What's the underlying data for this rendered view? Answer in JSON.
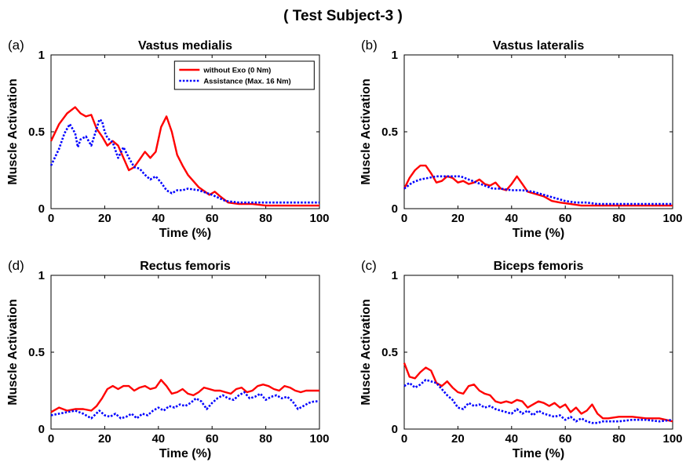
{
  "figure": {
    "title": "( Test Subject-3 )"
  },
  "colors": {
    "without": "#ff0000",
    "assistance": "#0000ff",
    "axis": "#000000"
  },
  "chart_data": [
    {
      "type": "line",
      "panel": "(a)",
      "title": "Vastus medialis",
      "xlabel": "Time (%)",
      "ylabel": "Muscle Activation",
      "xlim": [
        0,
        100
      ],
      "ylim": [
        0,
        1
      ],
      "xticks": [
        0,
        20,
        40,
        60,
        80,
        100
      ],
      "yticks": [
        0,
        0.5,
        1
      ],
      "legend": {
        "placement": "top-right",
        "entries": [
          "without Exo (0 Nm)",
          "Assistance (Max. 16 Nm)"
        ]
      },
      "series": [
        {
          "name": "without Exo (0 Nm)",
          "style": "solid",
          "color": "#ff0000",
          "x": [
            0,
            3,
            6,
            9,
            11,
            13,
            15,
            17,
            19,
            21,
            23,
            25,
            27,
            29,
            31,
            33,
            35,
            37,
            39,
            41,
            43,
            45,
            47,
            49,
            51,
            55,
            59,
            61,
            63,
            66,
            70,
            75,
            80,
            90,
            100
          ],
          "y": [
            0.44,
            0.55,
            0.62,
            0.66,
            0.62,
            0.6,
            0.61,
            0.52,
            0.47,
            0.41,
            0.44,
            0.41,
            0.33,
            0.25,
            0.27,
            0.32,
            0.37,
            0.33,
            0.37,
            0.53,
            0.6,
            0.5,
            0.35,
            0.28,
            0.22,
            0.14,
            0.09,
            0.11,
            0.08,
            0.04,
            0.03,
            0.03,
            0.02,
            0.02,
            0.02
          ]
        },
        {
          "name": "Assistance (Max. 16 Nm)",
          "style": "dotted",
          "color": "#0000ff",
          "x": [
            0,
            3,
            5,
            7,
            9,
            10,
            11,
            13,
            15,
            17,
            18,
            19,
            20,
            21,
            23,
            25,
            27,
            29,
            31,
            33,
            35,
            37,
            39,
            41,
            43,
            45,
            47,
            49,
            51,
            55,
            60,
            65,
            70,
            80,
            90,
            100
          ],
          "y": [
            0.28,
            0.39,
            0.49,
            0.55,
            0.49,
            0.4,
            0.45,
            0.47,
            0.41,
            0.52,
            0.58,
            0.57,
            0.5,
            0.46,
            0.43,
            0.33,
            0.4,
            0.33,
            0.27,
            0.26,
            0.22,
            0.19,
            0.21,
            0.17,
            0.12,
            0.1,
            0.12,
            0.12,
            0.13,
            0.12,
            0.09,
            0.05,
            0.04,
            0.04,
            0.04,
            0.04
          ]
        }
      ]
    },
    {
      "type": "line",
      "panel": "(b)",
      "title": "Vastus lateralis",
      "xlabel": "Time (%)",
      "ylabel": "Muscle Activation",
      "xlim": [
        0,
        100
      ],
      "ylim": [
        0,
        1
      ],
      "xticks": [
        0,
        20,
        40,
        60,
        80,
        100
      ],
      "yticks": [
        0,
        0.5,
        1
      ],
      "series": [
        {
          "name": "without Exo (0 Nm)",
          "style": "solid",
          "color": "#ff0000",
          "x": [
            0,
            2,
            4,
            6,
            8,
            10,
            12,
            14,
            16,
            18,
            20,
            22,
            24,
            26,
            28,
            30,
            32,
            34,
            36,
            38,
            40,
            42,
            44,
            46,
            48,
            50,
            52,
            55,
            58,
            62,
            66,
            70,
            80,
            90,
            100
          ],
          "y": [
            0.13,
            0.2,
            0.25,
            0.28,
            0.28,
            0.23,
            0.17,
            0.18,
            0.21,
            0.2,
            0.17,
            0.18,
            0.16,
            0.17,
            0.19,
            0.16,
            0.15,
            0.17,
            0.13,
            0.12,
            0.16,
            0.21,
            0.16,
            0.11,
            0.1,
            0.09,
            0.08,
            0.05,
            0.04,
            0.03,
            0.02,
            0.02,
            0.02,
            0.02,
            0.02
          ]
        },
        {
          "name": "Assistance (Max. 16 Nm)",
          "style": "dotted",
          "color": "#0000ff",
          "x": [
            0,
            3,
            6,
            9,
            12,
            15,
            18,
            21,
            24,
            27,
            30,
            33,
            36,
            40,
            44,
            48,
            52,
            56,
            60,
            64,
            68,
            72,
            80,
            90,
            100
          ],
          "y": [
            0.13,
            0.17,
            0.19,
            0.2,
            0.21,
            0.21,
            0.21,
            0.21,
            0.19,
            0.17,
            0.15,
            0.13,
            0.13,
            0.12,
            0.12,
            0.11,
            0.09,
            0.07,
            0.05,
            0.04,
            0.04,
            0.03,
            0.03,
            0.03,
            0.03
          ]
        }
      ]
    },
    {
      "type": "line",
      "panel": "(d)",
      "title": "Rectus femoris",
      "xlabel": "Time (%)",
      "ylabel": "Muscle Activation",
      "xlim": [
        0,
        100
      ],
      "ylim": [
        0,
        1
      ],
      "xticks": [
        0,
        20,
        40,
        60,
        80,
        100
      ],
      "yticks": [
        0,
        0.5,
        1
      ],
      "series": [
        {
          "name": "without Exo (0 Nm)",
          "style": "solid",
          "color": "#ff0000",
          "x": [
            0,
            3,
            6,
            9,
            12,
            15,
            17,
            19,
            21,
            23,
            25,
            27,
            29,
            31,
            33,
            35,
            37,
            39,
            41,
            43,
            45,
            47,
            49,
            51,
            53,
            55,
            57,
            59,
            61,
            63,
            65,
            67,
            69,
            71,
            73,
            75,
            77,
            79,
            81,
            83,
            85,
            87,
            89,
            91,
            93,
            95,
            97,
            100
          ],
          "y": [
            0.11,
            0.14,
            0.12,
            0.13,
            0.13,
            0.12,
            0.15,
            0.2,
            0.26,
            0.28,
            0.26,
            0.28,
            0.28,
            0.25,
            0.27,
            0.28,
            0.26,
            0.27,
            0.32,
            0.28,
            0.23,
            0.24,
            0.26,
            0.23,
            0.22,
            0.24,
            0.27,
            0.26,
            0.25,
            0.25,
            0.24,
            0.23,
            0.26,
            0.27,
            0.24,
            0.25,
            0.28,
            0.29,
            0.28,
            0.26,
            0.25,
            0.28,
            0.27,
            0.25,
            0.24,
            0.25,
            0.25,
            0.25
          ]
        },
        {
          "name": "Assistance (Max. 16 Nm)",
          "style": "dotted",
          "color": "#0000ff",
          "x": [
            0,
            3,
            6,
            9,
            12,
            15,
            18,
            20,
            22,
            24,
            26,
            28,
            30,
            32,
            34,
            36,
            38,
            40,
            42,
            44,
            46,
            48,
            50,
            52,
            54,
            56,
            58,
            60,
            62,
            64,
            66,
            68,
            70,
            72,
            74,
            76,
            78,
            80,
            82,
            84,
            86,
            88,
            90,
            92,
            94,
            96,
            98,
            100
          ],
          "y": [
            0.09,
            0.1,
            0.11,
            0.12,
            0.1,
            0.07,
            0.12,
            0.09,
            0.08,
            0.1,
            0.07,
            0.08,
            0.1,
            0.07,
            0.1,
            0.09,
            0.12,
            0.14,
            0.12,
            0.15,
            0.14,
            0.16,
            0.15,
            0.17,
            0.2,
            0.18,
            0.13,
            0.17,
            0.2,
            0.22,
            0.2,
            0.19,
            0.22,
            0.24,
            0.2,
            0.21,
            0.23,
            0.19,
            0.21,
            0.22,
            0.2,
            0.21,
            0.18,
            0.13,
            0.15,
            0.17,
            0.18,
            0.18
          ]
        }
      ]
    },
    {
      "type": "line",
      "panel": "(c)",
      "title": "Biceps femoris",
      "xlabel": "Time (%)",
      "ylabel": "Muscle Activation",
      "xlim": [
        0,
        100
      ],
      "ylim": [
        0,
        1
      ],
      "xticks": [
        0,
        20,
        40,
        60,
        80,
        100
      ],
      "yticks": [
        0,
        0.5,
        1
      ],
      "series": [
        {
          "name": "without Exo (0 Nm)",
          "style": "solid",
          "color": "#ff0000",
          "x": [
            0,
            2,
            4,
            6,
            8,
            10,
            12,
            14,
            16,
            18,
            20,
            22,
            24,
            26,
            28,
            30,
            32,
            34,
            36,
            38,
            40,
            42,
            44,
            46,
            48,
            50,
            52,
            54,
            56,
            58,
            60,
            62,
            64,
            66,
            68,
            70,
            72,
            74,
            76,
            80,
            85,
            90,
            95,
            100
          ],
          "y": [
            0.43,
            0.34,
            0.33,
            0.37,
            0.4,
            0.38,
            0.3,
            0.28,
            0.31,
            0.27,
            0.24,
            0.23,
            0.28,
            0.29,
            0.25,
            0.23,
            0.22,
            0.18,
            0.17,
            0.18,
            0.17,
            0.19,
            0.18,
            0.14,
            0.16,
            0.18,
            0.17,
            0.15,
            0.17,
            0.14,
            0.16,
            0.11,
            0.14,
            0.1,
            0.12,
            0.16,
            0.1,
            0.07,
            0.07,
            0.08,
            0.08,
            0.07,
            0.07,
            0.05
          ]
        },
        {
          "name": "Assistance (Max. 16 Nm)",
          "style": "dotted",
          "color": "#0000ff",
          "x": [
            0,
            2,
            4,
            6,
            8,
            10,
            12,
            14,
            16,
            18,
            20,
            22,
            24,
            26,
            28,
            30,
            32,
            34,
            36,
            38,
            40,
            42,
            44,
            46,
            48,
            50,
            52,
            54,
            56,
            58,
            60,
            62,
            64,
            66,
            68,
            70,
            72,
            74,
            76,
            80,
            85,
            90,
            95,
            100
          ],
          "y": [
            0.28,
            0.3,
            0.27,
            0.29,
            0.32,
            0.31,
            0.3,
            0.26,
            0.22,
            0.19,
            0.14,
            0.13,
            0.17,
            0.15,
            0.16,
            0.14,
            0.15,
            0.13,
            0.12,
            0.11,
            0.1,
            0.13,
            0.1,
            0.12,
            0.09,
            0.12,
            0.1,
            0.09,
            0.08,
            0.09,
            0.06,
            0.08,
            0.05,
            0.07,
            0.05,
            0.04,
            0.04,
            0.05,
            0.05,
            0.05,
            0.06,
            0.06,
            0.05,
            0.06
          ]
        }
      ]
    }
  ]
}
